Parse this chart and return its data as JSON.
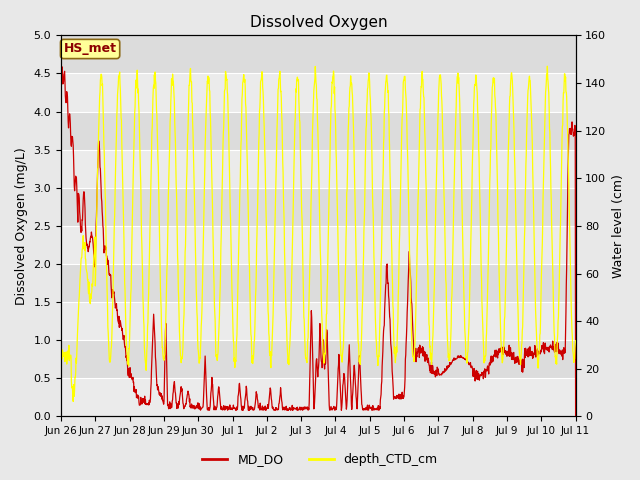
{
  "title": "Dissolved Oxygen",
  "ylabel_left": "Dissolved Oxygen (mg/L)",
  "ylabel_right": "Water level (cm)",
  "ylim_left": [
    0,
    5.0
  ],
  "ylim_right": [
    0,
    160
  ],
  "annotation_text": "HS_met",
  "annotation_color": "#8b0000",
  "annotation_bg": "#ffff99",
  "annotation_edge": "#8b6914",
  "bg_color": "#e8e8e8",
  "inner_bg": "#e0e0e0",
  "grid_color": "#ffffff",
  "line_color_do": "#cc0000",
  "line_color_depth": "#ffff00",
  "legend_do": "MD_DO",
  "legend_depth": "depth_CTD_cm",
  "tick_labels": [
    "Jun 26",
    "Jun 27",
    "Jun 28",
    "Jun 29",
    "Jun 30",
    "Jul 1",
    "Jul 2",
    "Jul 3",
    "Jul 4",
    "Jul 5",
    "Jul 6",
    "Jul 7",
    "Jul 8",
    "Jul 9",
    "Jul 10",
    "Jul 11"
  ],
  "yticks_left": [
    0.0,
    0.5,
    1.0,
    1.5,
    2.0,
    2.5,
    3.0,
    3.5,
    4.0,
    4.5,
    5.0
  ],
  "yticks_right": [
    0,
    20,
    40,
    60,
    80,
    100,
    120,
    140,
    160
  ]
}
